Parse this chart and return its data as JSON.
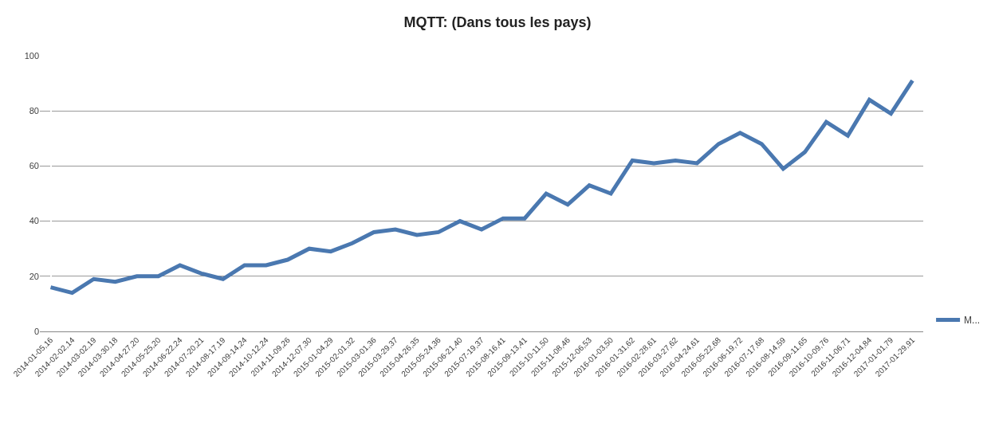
{
  "chart_data": {
    "type": "line",
    "title": "MQTT: (Dans tous les pays)",
    "categories": [
      "2014-01-05,16",
      "2014-02-02,14",
      "2014-03-02,19",
      "2014-03-30,18",
      "2014-04-27,20",
      "2014-05-25,20",
      "2014-06-22,24",
      "2014-07-20,21",
      "2014-08-17,19",
      "2014-09-14,24",
      "2014-10-12,24",
      "2014-11-09,26",
      "2014-12-07,30",
      "2015-01-04,29",
      "2015-02-01,32",
      "2015-03-01,36",
      "2015-03-29,37",
      "2015-04-26,35",
      "2015-05-24,36",
      "2015-06-21,40",
      "2015-07-19,37",
      "2015-08-16,41",
      "2015-09-13,41",
      "2015-10-11,50",
      "2015-11-08,46",
      "2015-12-06,53",
      "2016-01-03,50",
      "2016-01-31,62",
      "2016-02-28,61",
      "2016-03-27,62",
      "2016-04-24,61",
      "2016-05-22,68",
      "2016-06-19,72",
      "2016-07-17,68",
      "2016-08-14,59",
      "2016-09-11,65",
      "2016-10-09,76",
      "2016-11-06,71",
      "2016-12-04,84",
      "2017-01-01,79",
      "2017-01-29,91"
    ],
    "series": [
      {
        "name": "M...",
        "color": "#4a78b0",
        "values": [
          16,
          14,
          19,
          18,
          20,
          20,
          24,
          21,
          19,
          24,
          24,
          26,
          30,
          29,
          32,
          36,
          37,
          35,
          36,
          40,
          37,
          41,
          41,
          50,
          46,
          53,
          50,
          62,
          61,
          62,
          61,
          68,
          72,
          68,
          59,
          65,
          76,
          71,
          84,
          79,
          91
        ]
      }
    ],
    "ylim": [
      0,
      100
    ],
    "yticks": [
      0,
      20,
      40,
      60,
      80,
      100
    ],
    "grid": "y",
    "legend": "right",
    "marker": "none",
    "line_style": "solid"
  }
}
